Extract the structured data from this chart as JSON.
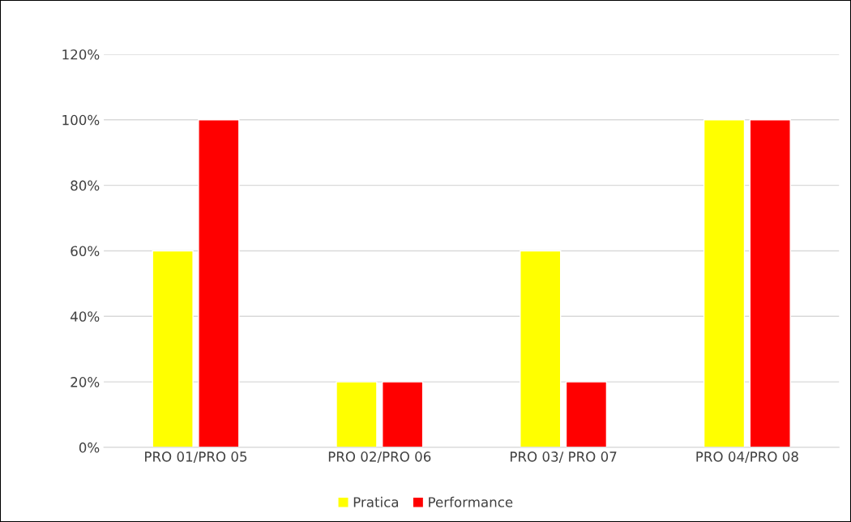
{
  "chart_data": {
    "type": "bar",
    "categories": [
      "PRO 01/PRO 05",
      "PRO 02/PRO 06",
      "PRO 03/ PRO 07",
      "PRO 04/PRO 08"
    ],
    "series": [
      {
        "name": "Pratica",
        "color": "#ffff00",
        "values": [
          60,
          20,
          60,
          100
        ]
      },
      {
        "name": "Performance",
        "color": "#ff0000",
        "values": [
          100,
          20,
          20,
          100
        ]
      }
    ],
    "ylim": [
      0,
      120
    ],
    "yticks": [
      {
        "value": 0,
        "label": "0%"
      },
      {
        "value": 20,
        "label": "20%"
      },
      {
        "value": 40,
        "label": "40%"
      },
      {
        "value": 60,
        "label": "60%"
      },
      {
        "value": 80,
        "label": "80%"
      },
      {
        "value": 100,
        "label": "100%"
      },
      {
        "value": 120,
        "label": "120%"
      }
    ],
    "grid": "y",
    "legend": "bottom"
  }
}
